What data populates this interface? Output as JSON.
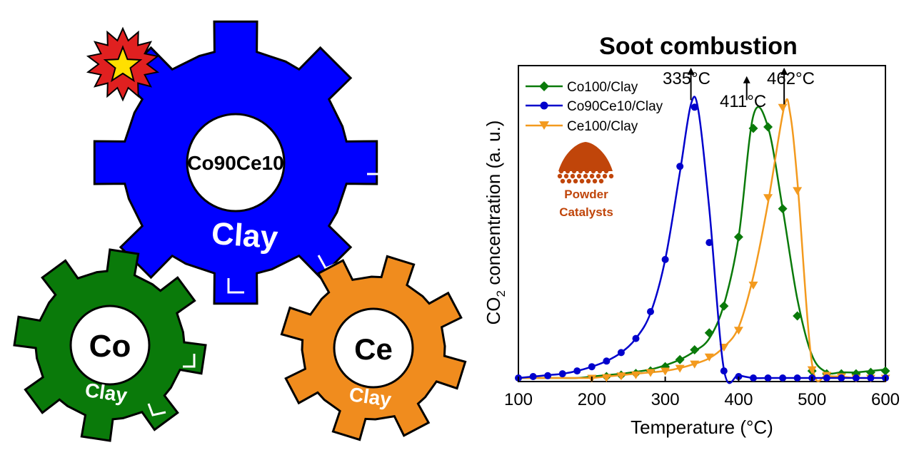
{
  "gears": {
    "main": {
      "label": "Co90Ce10",
      "clay": "Clay",
      "color": "#0000ff"
    },
    "left": {
      "label": "Co",
      "clay": "Clay",
      "color": "#0a7a0a"
    },
    "right": {
      "label": "Ce",
      "clay": "Clay",
      "color": "#f08c1e"
    }
  },
  "badge_colors": {
    "burst": "#e02020",
    "star": "#ffe000"
  },
  "powder": {
    "line1": "Powder",
    "line2": "Catalysts",
    "color": "#c0450a"
  },
  "chart_data": {
    "type": "line",
    "title": "Soot combustion",
    "xlabel": "Temperature (°C)",
    "ylabel_main": "CO",
    "ylabel_sub": "2",
    "ylabel_rest": " concentration (a. u.)",
    "xlim": [
      100,
      600
    ],
    "ylim": [
      0,
      1
    ],
    "xticks": [
      100,
      200,
      300,
      400,
      500,
      600
    ],
    "xtick_labels": [
      "100",
      "200",
      "300",
      "400",
      "500",
      "600"
    ],
    "grid": false,
    "legend_position": "top-left",
    "series": [
      {
        "name": "Co100/Clay",
        "color": "#0a7a0a",
        "marker": "diamond",
        "x": [
          100,
          120,
          140,
          160,
          180,
          200,
          220,
          240,
          260,
          280,
          300,
          320,
          340,
          360,
          380,
          400,
          420,
          440,
          460,
          480,
          500,
          520,
          540,
          560,
          580,
          600
        ],
        "y": [
          0.0,
          0.0,
          0.0,
          0.0,
          0.0,
          0.005,
          0.01,
          0.015,
          0.022,
          0.03,
          0.045,
          0.065,
          0.095,
          0.14,
          0.26,
          0.5,
          0.93,
          0.89,
          0.6,
          0.28,
          0.08,
          0.02,
          0.02,
          0.02,
          0.025,
          0.03
        ],
        "markers_x": [
          220,
          240,
          260,
          280,
          300,
          320,
          340,
          360,
          380,
          400,
          420,
          440,
          460,
          480,
          500,
          520,
          540,
          560,
          580,
          600
        ],
        "markers_y": [
          0.005,
          0.01,
          0.016,
          0.025,
          0.04,
          0.065,
          0.1,
          0.16,
          0.255,
          0.5,
          0.885,
          0.89,
          0.6,
          0.22,
          0.025,
          0.015,
          0.015,
          0.015,
          0.02,
          0.025
        ]
      },
      {
        "name": "Co90Ce10/Clay",
        "color": "#0000cc",
        "marker": "circle",
        "x": [
          100,
          120,
          140,
          160,
          180,
          200,
          220,
          240,
          260,
          280,
          300,
          320,
          335,
          345,
          360,
          380,
          400,
          420,
          440,
          460,
          480,
          500,
          520,
          540,
          560,
          580,
          600
        ],
        "y": [
          0.0,
          0.005,
          0.01,
          0.015,
          0.025,
          0.04,
          0.06,
          0.09,
          0.14,
          0.23,
          0.42,
          0.73,
          0.97,
          0.95,
          0.6,
          0.03,
          0.01,
          0.0,
          0.0,
          0.0,
          0.0,
          0.0,
          0.0,
          0.0,
          0.0,
          0.0,
          0.0
        ],
        "markers_x": [
          100,
          120,
          140,
          160,
          180,
          200,
          220,
          240,
          260,
          280,
          300,
          320,
          340,
          360,
          380,
          400,
          420,
          440,
          460,
          480,
          500,
          520,
          540,
          560,
          580,
          600
        ],
        "markers_y": [
          0.0,
          0.005,
          0.008,
          0.015,
          0.025,
          0.04,
          0.06,
          0.09,
          0.14,
          0.235,
          0.42,
          0.75,
          0.96,
          0.48,
          0.025,
          0.005,
          0.0,
          0.0,
          0.0,
          0.0,
          0.0,
          0.0,
          0.0,
          0.0,
          0.0,
          0.0
        ]
      },
      {
        "name": "Ce100/Clay",
        "color": "#f39a1e",
        "marker": "triangle-down",
        "x": [
          100,
          120,
          140,
          160,
          180,
          200,
          220,
          240,
          260,
          280,
          300,
          320,
          340,
          360,
          380,
          400,
          420,
          440,
          462,
          470,
          480,
          500,
          520,
          540,
          560,
          580,
          600
        ],
        "y": [
          0.0,
          0.0,
          0.0,
          0.0,
          0.0,
          0.0,
          0.005,
          0.01,
          0.015,
          0.02,
          0.025,
          0.035,
          0.05,
          0.07,
          0.11,
          0.18,
          0.36,
          0.62,
          0.96,
          0.94,
          0.7,
          0.05,
          0.01,
          0.005,
          0.0,
          0.0,
          0.0
        ],
        "markers_x": [
          200,
          220,
          240,
          260,
          280,
          300,
          320,
          340,
          360,
          380,
          400,
          420,
          440,
          460,
          480,
          500,
          520,
          540,
          560,
          580,
          600
        ],
        "markers_y": [
          0.0,
          0.002,
          0.008,
          0.012,
          0.02,
          0.025,
          0.035,
          0.05,
          0.075,
          0.11,
          0.17,
          0.33,
          0.64,
          0.96,
          0.665,
          0.03,
          0.01,
          0.005,
          0.0,
          0.0,
          0.0
        ]
      }
    ],
    "annotations": [
      {
        "text": "335°C",
        "x": 335,
        "arrow_from": 0.985,
        "arrow_to": 1.1
      },
      {
        "text": "411°C",
        "x": 411,
        "arrow_from": 0.985,
        "arrow_to": 1.07
      },
      {
        "text": "462°C",
        "x": 462,
        "arrow_from": 0.97,
        "arrow_to": 1.1
      }
    ]
  }
}
